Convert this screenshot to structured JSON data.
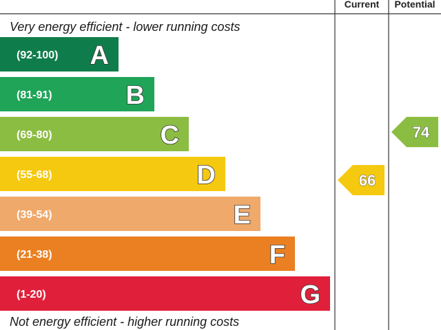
{
  "header": {
    "current_label": "Current",
    "potential_label": "Potential"
  },
  "top_note": "Very energy efficient - lower running costs",
  "bottom_note": "Not energy efficient - higher running costs",
  "chart_data": {
    "type": "bar",
    "title": "",
    "categories": [
      "A",
      "B",
      "C",
      "D",
      "E",
      "F",
      "G"
    ],
    "bands": [
      {
        "letter": "A",
        "range": "(92-100)",
        "color": "#0f7d4b"
      },
      {
        "letter": "B",
        "range": "(81-91)",
        "color": "#20a458"
      },
      {
        "letter": "C",
        "range": "(69-80)",
        "color": "#8cbd43"
      },
      {
        "letter": "D",
        "range": "(55-68)",
        "color": "#f5c90f"
      },
      {
        "letter": "E",
        "range": "(39-54)",
        "color": "#efa96b"
      },
      {
        "letter": "F",
        "range": "(21-38)",
        "color": "#eb8023"
      },
      {
        "letter": "G",
        "range": "(1-20)",
        "color": "#e0203a"
      }
    ],
    "series": [
      {
        "name": "Current",
        "value": 66,
        "band": "D",
        "color": "#f5c90f"
      },
      {
        "name": "Potential",
        "value": 74,
        "band": "C",
        "color": "#8cbd43"
      }
    ]
  }
}
